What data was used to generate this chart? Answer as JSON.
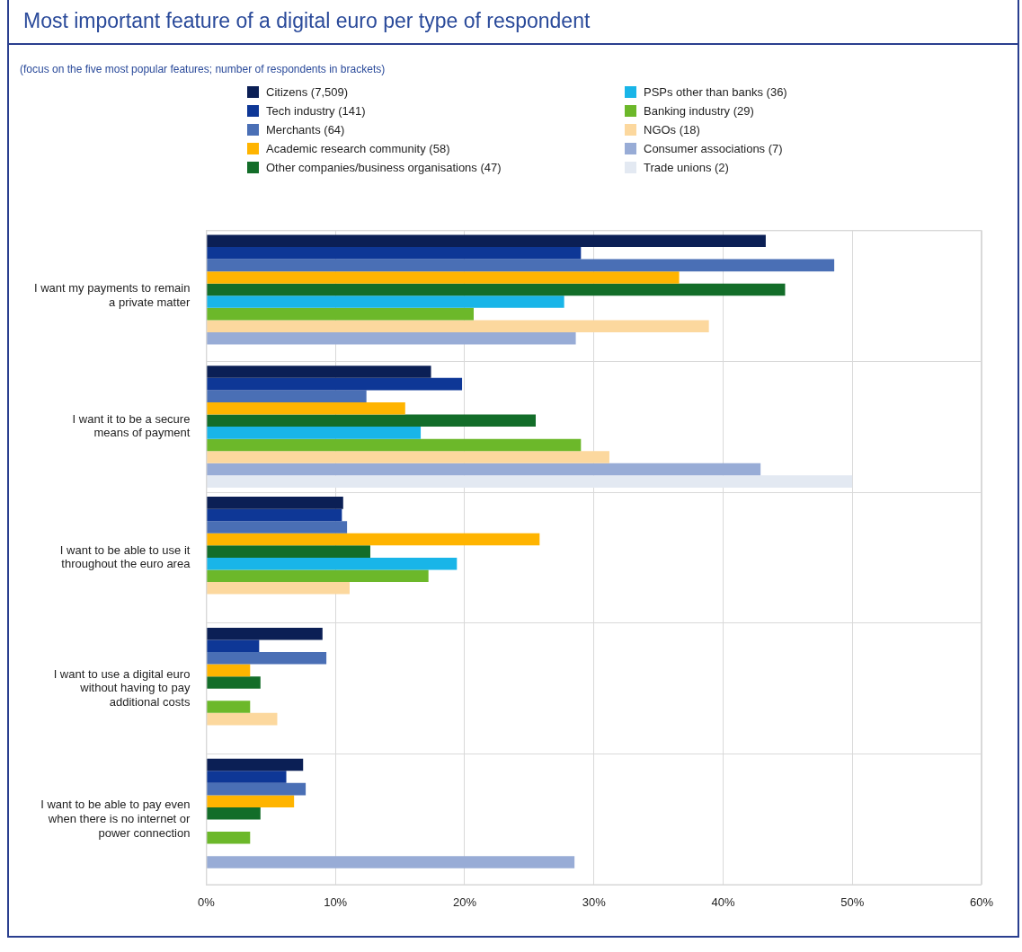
{
  "chart_data": {
    "type": "bar",
    "orientation": "horizontal",
    "title": "Most important feature of a digital euro per type of respondent",
    "subtitle": "(focus on the five most popular features; number of respondents in brackets)",
    "categories": [
      "I want my payments to remain a private matter",
      "I want it to be a secure means of payment",
      "I want to be able to use it throughout the euro area",
      "I want to use a digital euro without having to pay additional costs",
      "I want to be able to pay even when there is no internet or power connection"
    ],
    "series": [
      {
        "name": "Citizens (7,509)",
        "color": "#0b1f55",
        "values": [
          43.3,
          17.4,
          10.6,
          9.0,
          7.5
        ]
      },
      {
        "name": "Tech industry (141)",
        "color": "#0e3796",
        "values": [
          29.0,
          19.8,
          10.5,
          4.1,
          6.2
        ]
      },
      {
        "name": "Merchants (64)",
        "color": "#4a6fb5",
        "values": [
          48.6,
          12.4,
          10.9,
          9.3,
          7.7
        ]
      },
      {
        "name": "Academic research community (58)",
        "color": "#ffb400",
        "values": [
          36.6,
          15.4,
          25.8,
          3.4,
          6.8
        ]
      },
      {
        "name": "Other companies/business organisations (47)",
        "color": "#136d29",
        "values": [
          44.8,
          25.5,
          12.7,
          4.2,
          4.2
        ]
      },
      {
        "name": "PSPs other than banks (36)",
        "color": "#19b5e8",
        "values": [
          27.7,
          16.6,
          19.4,
          null,
          null
        ]
      },
      {
        "name": "Banking industry (29)",
        "color": "#6cb82a",
        "values": [
          20.7,
          29.0,
          17.2,
          3.4,
          3.4
        ]
      },
      {
        "name": "NGOs (18)",
        "color": "#fcd89e",
        "values": [
          38.9,
          31.2,
          11.1,
          5.5,
          null
        ]
      },
      {
        "name": "Consumer associations (7)",
        "color": "#98acd6",
        "values": [
          28.6,
          42.9,
          null,
          null,
          28.5
        ]
      },
      {
        "name": "Trade unions (2)",
        "color": "#e3e9f2",
        "values": [
          null,
          50,
          null,
          null,
          null
        ]
      }
    ],
    "xlim": [
      0,
      60
    ],
    "xticks": [
      {
        "value": 0,
        "label": "0%"
      },
      {
        "value": 10,
        "label": "10%"
      },
      {
        "value": 20,
        "label": "20%"
      },
      {
        "value": 30,
        "label": "30%"
      },
      {
        "value": 40,
        "label": "40%"
      },
      {
        "value": 50,
        "label": "50%"
      },
      {
        "value": 60,
        "label": "60%"
      }
    ],
    "grid": true,
    "legend": "top"
  }
}
